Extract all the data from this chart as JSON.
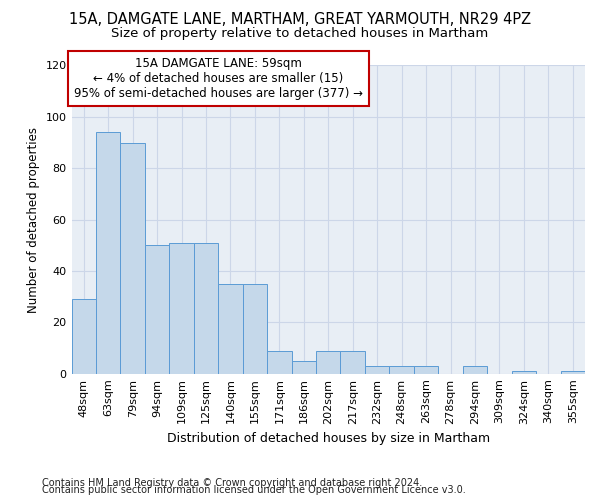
{
  "title": "15A, DAMGATE LANE, MARTHAM, GREAT YARMOUTH, NR29 4PZ",
  "subtitle": "Size of property relative to detached houses in Martham",
  "xlabel": "Distribution of detached houses by size in Martham",
  "ylabel": "Number of detached properties",
  "categories": [
    "48sqm",
    "63sqm",
    "79sqm",
    "94sqm",
    "109sqm",
    "125sqm",
    "140sqm",
    "155sqm",
    "171sqm",
    "186sqm",
    "202sqm",
    "217sqm",
    "232sqm",
    "248sqm",
    "263sqm",
    "278sqm",
    "294sqm",
    "309sqm",
    "324sqm",
    "340sqm",
    "355sqm"
  ],
  "values": [
    29,
    94,
    90,
    50,
    51,
    51,
    35,
    35,
    9,
    5,
    9,
    9,
    3,
    3,
    3,
    0,
    3,
    0,
    1,
    0,
    1
  ],
  "bar_color": "#c5d8ea",
  "bar_edge_color": "#5b9bd5",
  "annotation_line1": "15A DAMGATE LANE: 59sqm",
  "annotation_line2": "← 4% of detached houses are smaller (15)",
  "annotation_line3": "95% of semi-detached houses are larger (377) →",
  "annotation_box_color": "#ffffff",
  "annotation_box_edge_color": "#c00000",
  "ylim": [
    0,
    120
  ],
  "yticks": [
    0,
    20,
    40,
    60,
    80,
    100,
    120
  ],
  "grid_color": "#ccd6e8",
  "background_color": "#e8eef5",
  "footer_line1": "Contains HM Land Registry data © Crown copyright and database right 2024.",
  "footer_line2": "Contains public sector information licensed under the Open Government Licence v3.0.",
  "title_fontsize": 10.5,
  "subtitle_fontsize": 9.5,
  "xlabel_fontsize": 9,
  "ylabel_fontsize": 8.5,
  "tick_fontsize": 8,
  "footer_fontsize": 7,
  "annotation_fontsize": 8.5
}
